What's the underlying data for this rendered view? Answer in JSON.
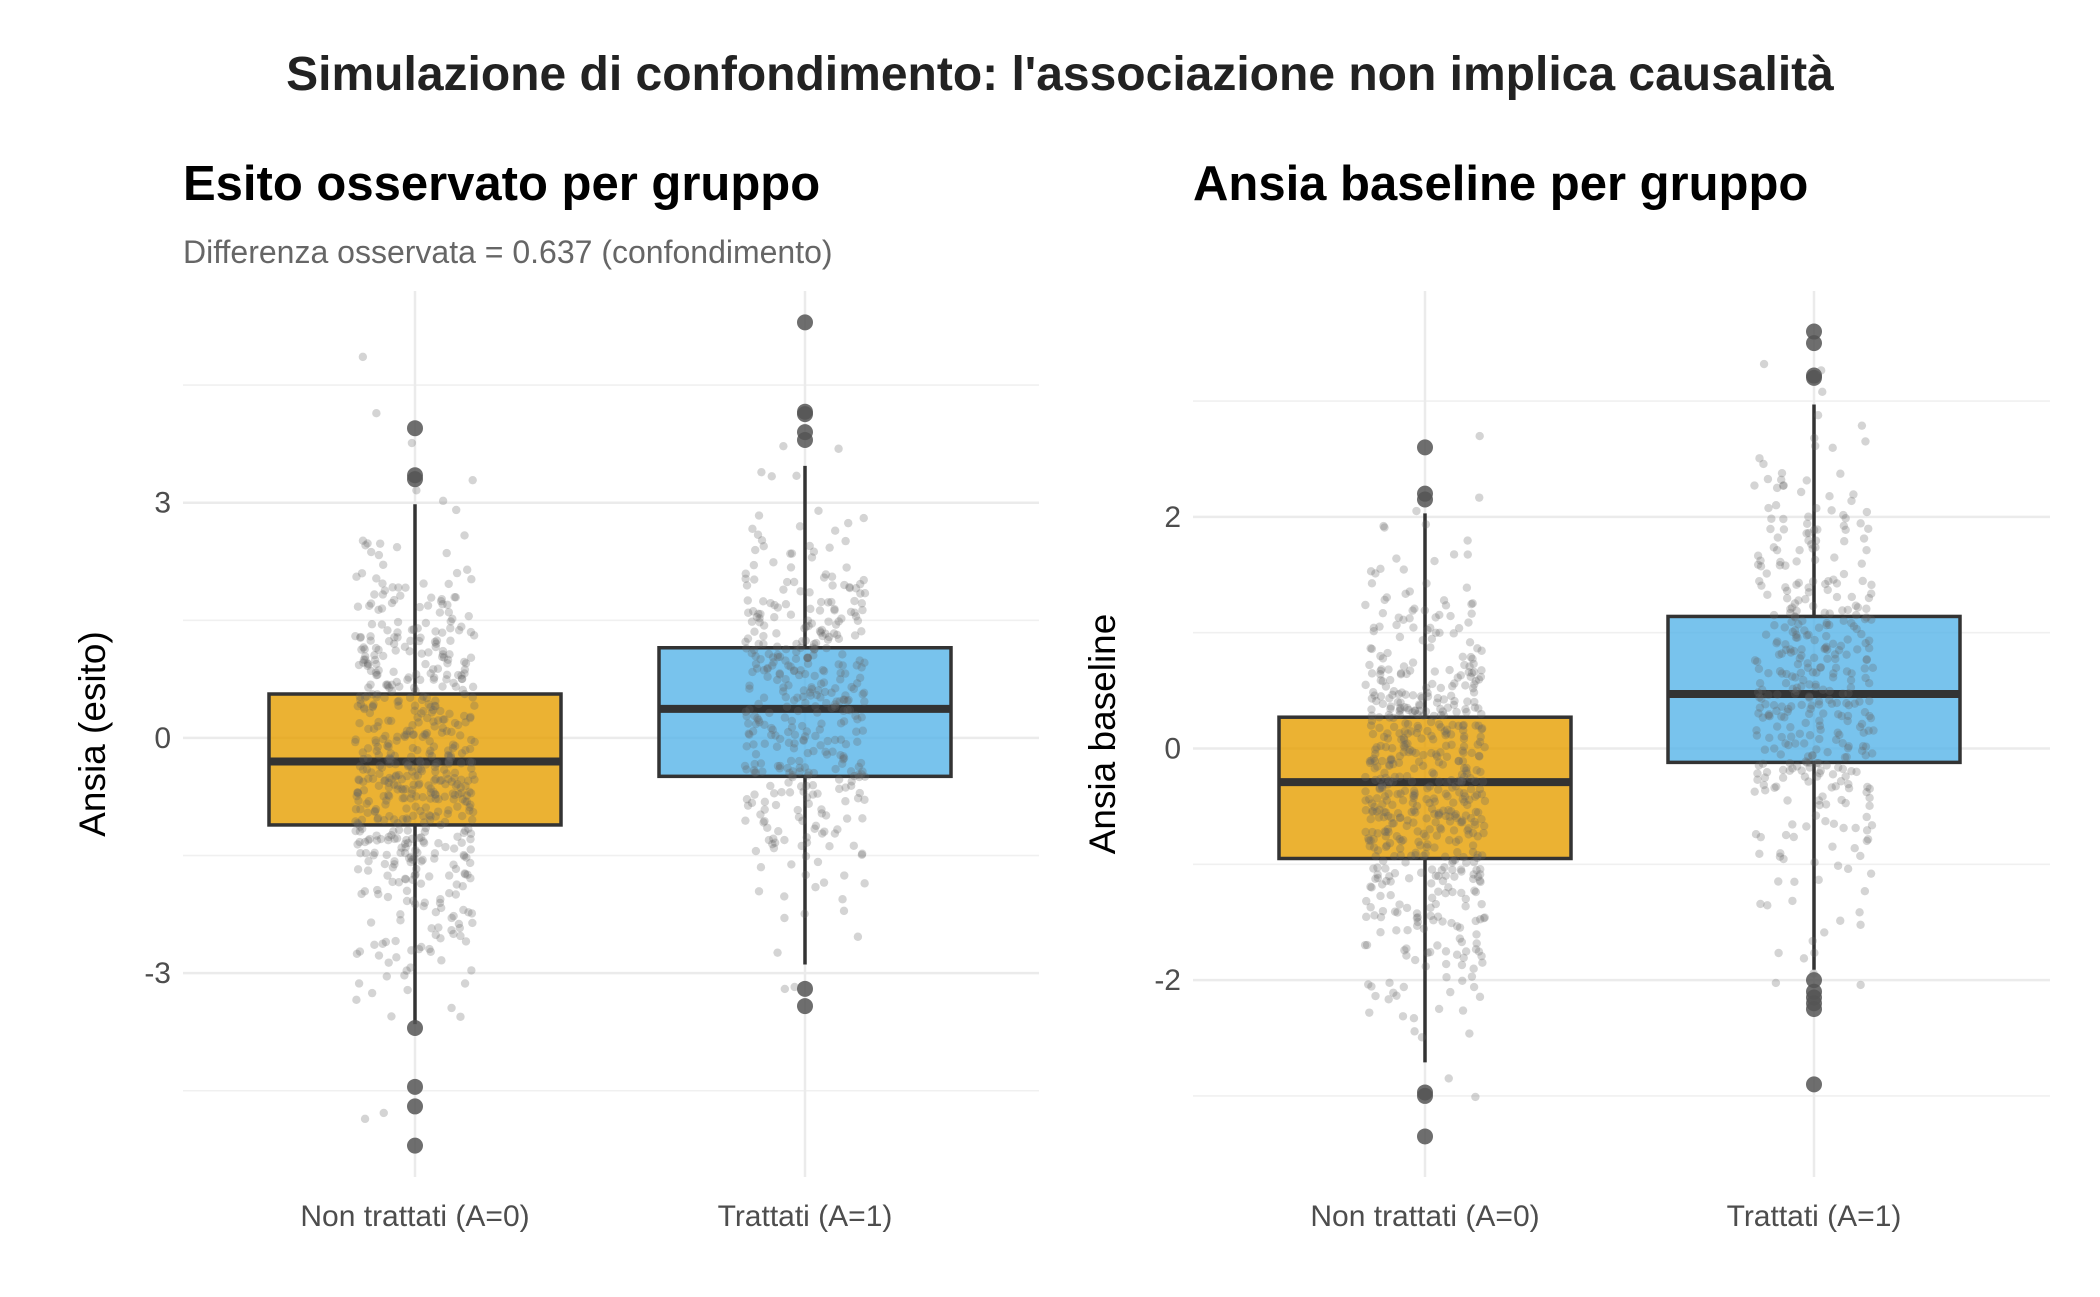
{
  "title": "Simulazione di confondimento: l'associazione non implica causalità",
  "colors": {
    "untreated": "#E69F00",
    "treated": "#56B4E9",
    "outline": "#333333",
    "points": "#666666"
  },
  "chart_data": [
    {
      "type": "box",
      "title": "Esito osservato per gruppo",
      "subtitle": "Differenza osservata = 0.637 (confondimento)",
      "xlabel": "",
      "ylabel": "Ansia (esito)",
      "categories": [
        "Non trattati (A=0)",
        "Trattati (A=1)"
      ],
      "yticks": [
        -3,
        0,
        3
      ],
      "ytick_labels": [
        "-3",
        "0",
        "3"
      ],
      "yminor": [
        -4.5,
        -1.5,
        1.5,
        4.5
      ],
      "ylim": [
        -5.6,
        5.7
      ],
      "grid": true,
      "boxes": [
        {
          "q1": -1.11,
          "median": -0.3,
          "q3": 0.56,
          "whisker_low": -3.65,
          "whisker_high": 2.98,
          "outliers": [
            3.3,
            3.35,
            3.95,
            -3.7,
            -4.45,
            -4.7,
            -5.2
          ],
          "n_jitter": 600,
          "sd": 1.35,
          "mean": -0.28
        },
        {
          "q1": -0.49,
          "median": 0.37,
          "q3": 1.15,
          "whisker_low": -2.89,
          "whisker_high": 3.47,
          "outliers": [
            3.8,
            3.9,
            4.13,
            4.16,
            5.3,
            -3.2,
            -3.42
          ],
          "n_jitter": 400,
          "sd": 1.25,
          "mean": 0.36
        }
      ]
    },
    {
      "type": "box",
      "title": "Ansia baseline per gruppo",
      "xlabel": "",
      "ylabel": "Ansia baseline",
      "categories": [
        "Non trattati (A=0)",
        "Trattati (A=1)"
      ],
      "yticks": [
        -2,
        0,
        2
      ],
      "ytick_labels": [
        "-2",
        "0",
        "2"
      ],
      "yminor": [
        -3,
        -1,
        1,
        3
      ],
      "ylim": [
        -3.7,
        3.95
      ],
      "grid": true,
      "boxes": [
        {
          "q1": -0.95,
          "median": -0.29,
          "q3": 0.27,
          "whisker_low": -2.71,
          "whisker_high": 2.03,
          "outliers": [
            2.6,
            2.2,
            2.15,
            -2.97,
            -3.0,
            -3.35
          ],
          "n_jitter": 600,
          "sd": 0.9,
          "mean": -0.31
        },
        {
          "q1": -0.12,
          "median": 0.47,
          "q3": 1.14,
          "whisker_low": -1.91,
          "whisker_high": 2.97,
          "outliers": [
            3.2,
            3.22,
            3.5,
            3.6,
            -2.0,
            -2.1,
            -2.15,
            -2.2,
            -2.25,
            -2.9
          ],
          "n_jitter": 400,
          "sd": 0.95,
          "mean": 0.5
        }
      ]
    }
  ]
}
